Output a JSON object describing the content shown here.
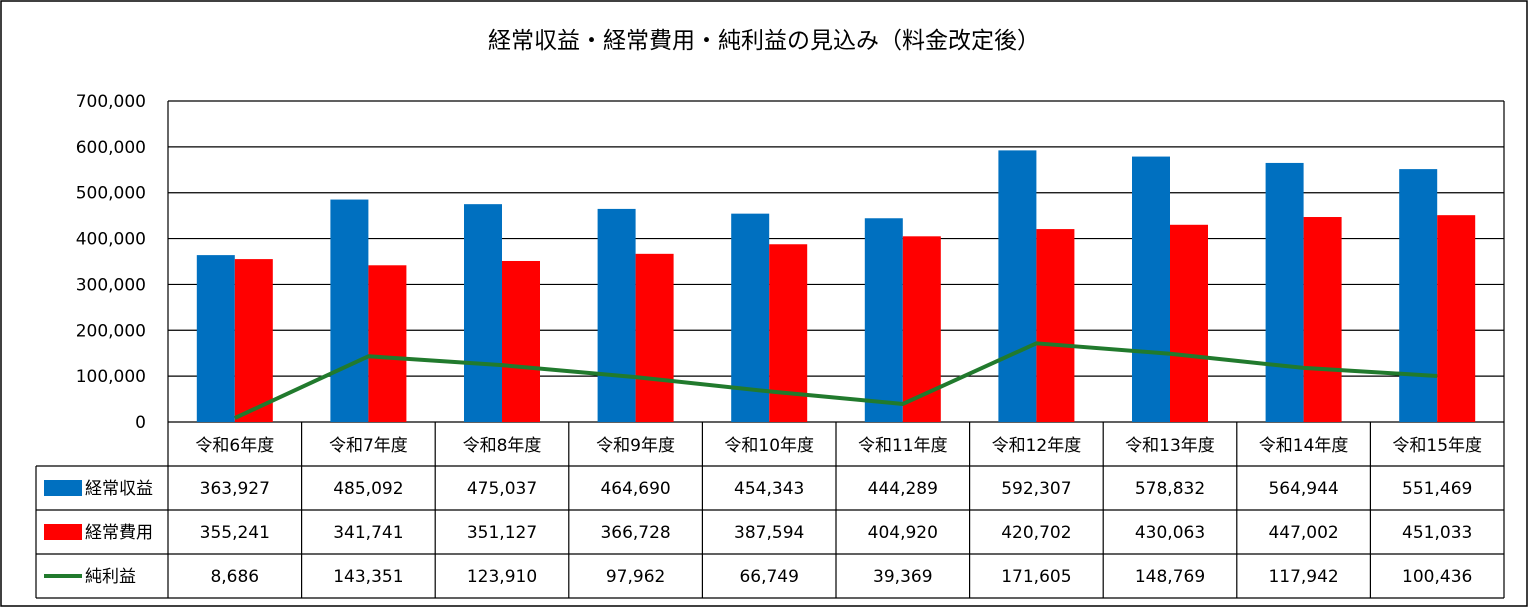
{
  "chart_data": {
    "type": "bar",
    "title": "経常収益・経常費用・純利益の見込み（料金改定後）",
    "categories": [
      "令和6年度",
      "令和7年度",
      "令和8年度",
      "令和9年度",
      "令和10年度",
      "令和11年度",
      "令和12年度",
      "令和13年度",
      "令和14年度",
      "令和15年度"
    ],
    "series": [
      {
        "name": "経常収益",
        "type": "bar",
        "color": "#0070C0",
        "values": [
          363927,
          485092,
          475037,
          464690,
          454343,
          444289,
          592307,
          578832,
          564944,
          551469
        ],
        "labels": [
          "363,927",
          "485,092",
          "475,037",
          "464,690",
          "454,343",
          "444,289",
          "592,307",
          "578,832",
          "564,944",
          "551,469"
        ]
      },
      {
        "name": "経常費用",
        "type": "bar",
        "color": "#FF0000",
        "values": [
          355241,
          341741,
          351127,
          366728,
          387594,
          404920,
          420702,
          430063,
          447002,
          451033
        ],
        "labels": [
          "355,241",
          "341,741",
          "351,127",
          "366,728",
          "387,594",
          "404,920",
          "420,702",
          "430,063",
          "447,002",
          "451,033"
        ]
      },
      {
        "name": "純利益",
        "type": "line",
        "color": "#217A2D",
        "values": [
          8686,
          143351,
          123910,
          97962,
          66749,
          39369,
          171605,
          148769,
          117942,
          100436
        ],
        "labels": [
          "8,686",
          "143,351",
          "123,910",
          "97,962",
          "66,749",
          "39,369",
          "171,605",
          "148,769",
          "117,942",
          "100,436"
        ]
      }
    ],
    "ylim": [
      0,
      700000
    ],
    "yticks": [
      0,
      100000,
      200000,
      300000,
      400000,
      500000,
      600000,
      700000
    ],
    "ytick_labels": [
      "0",
      "100,000",
      "200,000",
      "300,000",
      "400,000",
      "500,000",
      "600,000",
      "700,000"
    ],
    "grid": true,
    "legend": "data-table"
  }
}
